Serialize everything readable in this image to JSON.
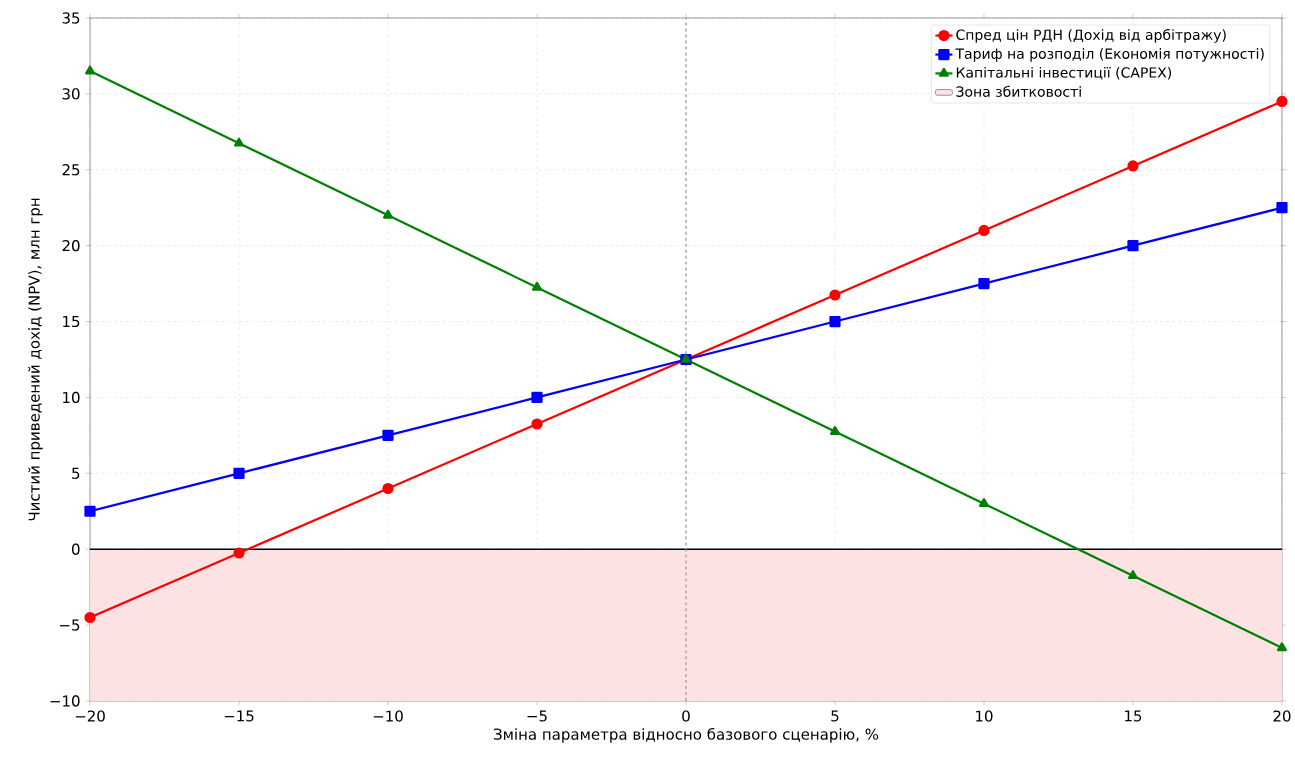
{
  "chart_data": {
    "type": "line",
    "xlabel": "Зміна параметра відносно базового сценарію, %",
    "ylabel": "Чистий приведений дохід (NPV), млн грн",
    "x": [
      -20,
      -15,
      -10,
      -5,
      0,
      5,
      10,
      15,
      20
    ],
    "series": [
      {
        "name": "Спред цін РДН (Дохід від арбітражу)",
        "color": "#ff0000",
        "marker": "circle",
        "values": [
          -4.5,
          -0.25,
          4.0,
          8.25,
          12.5,
          16.75,
          21.0,
          25.25,
          29.5
        ]
      },
      {
        "name": "Тариф на розподіл (Економія потужності)",
        "color": "#0000ff",
        "marker": "square",
        "values": [
          2.5,
          5.0,
          7.5,
          10.0,
          12.5,
          15.0,
          17.5,
          20.0,
          22.5
        ]
      },
      {
        "name": "Капітальні інвестиції (CAPEX)",
        "color": "#008000",
        "marker": "triangle",
        "values": [
          31.5,
          26.75,
          22.0,
          17.25,
          12.5,
          7.75,
          3.0,
          -1.75,
          -6.5
        ]
      }
    ],
    "xlim": [
      -20,
      20
    ],
    "ylim": [
      -10,
      35
    ],
    "xticks": [
      {
        "value": -20,
        "label": "−20"
      },
      {
        "value": -15,
        "label": "−15"
      },
      {
        "value": -10,
        "label": "−10"
      },
      {
        "value": -5,
        "label": "−5"
      },
      0,
      5,
      10,
      15,
      20
    ],
    "yticks": [
      {
        "value": -10,
        "label": "−10"
      },
      {
        "value": -5,
        "label": "−5"
      },
      0,
      5,
      10,
      15,
      20,
      25,
      30,
      35
    ],
    "ref_lines": [
      {
        "axis": "y",
        "value": 0,
        "color": "#000000",
        "line_style": "solid"
      },
      {
        "axis": "x",
        "value": 0,
        "color": "#999999",
        "line_style": "dashed"
      }
    ],
    "bands": [
      {
        "axis": "y",
        "from": -10,
        "to": 0,
        "label": "Зона збитковості",
        "color": "#fde2e3"
      }
    ],
    "grid": true,
    "legend": "top right",
    "line_style": "solid"
  }
}
